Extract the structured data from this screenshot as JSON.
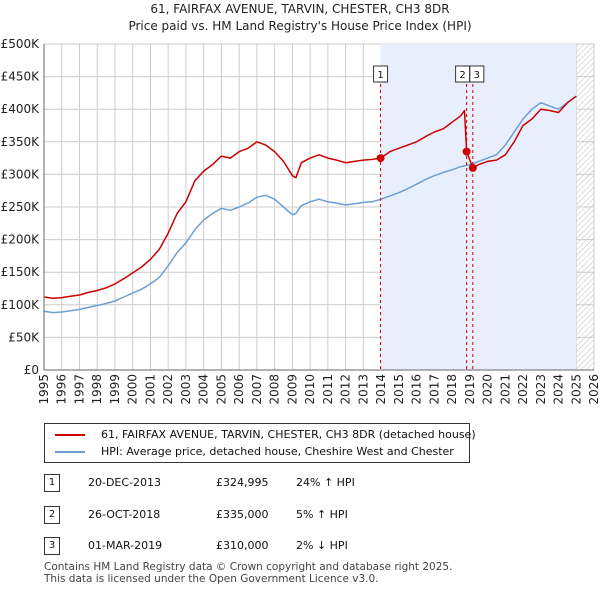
{
  "header": {
    "title_line1": "61, FAIRFAX AVENUE, TARVIN, CHESTER, CH3 8DR",
    "title_line2": "Price paid vs. HM Land Registry's House Price Index (HPI)"
  },
  "legend": {
    "property_label": "61, FAIRFAX AVENUE, TARVIN, CHESTER, CH3 8DR (detached house)",
    "hpi_label": "HPI: Average price, detached house, Cheshire West and Chester"
  },
  "colors": {
    "property": "#cc0000",
    "hpi": "#6b9fd4",
    "shade": "#e8eefb",
    "grid": "#cccccc"
  },
  "transactions": [
    {
      "num": "1",
      "date": "20-DEC-2013",
      "price": "£324,995",
      "hpi": "24% ↑ HPI"
    },
    {
      "num": "2",
      "date": "26-OCT-2018",
      "price": "£335,000",
      "hpi": "5% ↑ HPI"
    },
    {
      "num": "3",
      "date": "01-MAR-2019",
      "price": "£310,000",
      "hpi": "2% ↓ HPI"
    }
  ],
  "footer": {
    "line1": "Contains HM Land Registry data © Crown copyright and database right 2025.",
    "line2": "This data is licensed under the Open Government Licence v3.0."
  },
  "chart_data": {
    "type": "line",
    "title": "61, FAIRFAX AVENUE, TARVIN, CHESTER, CH3 8DR",
    "subtitle": "Price paid vs. HM Land Registry's House Price Index (HPI)",
    "xlabel": "",
    "ylabel": "",
    "xlim": [
      1995,
      2026
    ],
    "ylim": [
      0,
      500000
    ],
    "x_ticks": [
      1995,
      1996,
      1997,
      1998,
      1999,
      2000,
      2001,
      2002,
      2003,
      2004,
      2005,
      2006,
      2007,
      2008,
      2009,
      2010,
      2011,
      2012,
      2013,
      2014,
      2015,
      2016,
      2017,
      2018,
      2019,
      2020,
      2021,
      2022,
      2023,
      2024,
      2025,
      2026
    ],
    "y_ticks": [
      0,
      50000,
      100000,
      150000,
      200000,
      250000,
      300000,
      350000,
      400000,
      450000,
      500000
    ],
    "y_tick_labels": [
      "£0",
      "£50K",
      "£100K",
      "£150K",
      "£200K",
      "£250K",
      "£300K",
      "£350K",
      "£400K",
      "£450K",
      "£500K"
    ],
    "grid": true,
    "shaded_region": {
      "x_start": 2013.97,
      "x_end": 2025.0
    },
    "future_hatch": {
      "x_start": 2025.0,
      "x_end": 2026.0
    },
    "events": [
      {
        "label": "1",
        "x": 2013.97,
        "y": 324995
      },
      {
        "label": "2",
        "x": 2018.82,
        "y": 335000
      },
      {
        "label": "3",
        "x": 2019.17,
        "y": 310000
      }
    ],
    "series": [
      {
        "name": "61, FAIRFAX AVENUE, TARVIN, CHESTER, CH3 8DR (detached house)",
        "color": "#cc0000",
        "x": [
          1995.0,
          1995.5,
          1996.0,
          1996.5,
          1997.0,
          1997.5,
          1998.0,
          1998.5,
          1999.0,
          1999.5,
          2000.0,
          2000.5,
          2001.0,
          2001.5,
          2002.0,
          2002.5,
          2003.0,
          2003.5,
          2004.0,
          2004.5,
          2005.0,
          2005.5,
          2006.0,
          2006.5,
          2007.0,
          2007.5,
          2008.0,
          2008.5,
          2009.0,
          2009.2,
          2009.5,
          2010.0,
          2010.5,
          2011.0,
          2011.5,
          2012.0,
          2012.5,
          2013.0,
          2013.5,
          2013.97,
          2014.5,
          2015.0,
          2015.5,
          2016.0,
          2016.5,
          2017.0,
          2017.5,
          2018.0,
          2018.5,
          2018.7,
          2018.82,
          2019.17,
          2019.5,
          2020.0,
          2020.5,
          2021.0,
          2021.5,
          2022.0,
          2022.5,
          2023.0,
          2023.5,
          2024.0,
          2024.5,
          2025.0
        ],
        "y": [
          112000,
          110000,
          111000,
          113000,
          115000,
          119000,
          122000,
          126000,
          132000,
          140000,
          149000,
          158000,
          170000,
          185000,
          210000,
          240000,
          258000,
          290000,
          305000,
          315000,
          328000,
          325000,
          335000,
          340000,
          350000,
          345000,
          335000,
          320000,
          298000,
          295000,
          318000,
          325000,
          330000,
          325000,
          322000,
          318000,
          320000,
          322000,
          323000,
          324995,
          335000,
          340000,
          345000,
          350000,
          358000,
          365000,
          370000,
          380000,
          390000,
          398000,
          335000,
          310000,
          315000,
          320000,
          322000,
          330000,
          350000,
          375000,
          385000,
          400000,
          398000,
          395000,
          410000,
          420000
        ]
      },
      {
        "name": "HPI: Average price, detached house, Cheshire West and Chester",
        "color": "#6b9fd4",
        "x": [
          1995.0,
          1995.5,
          1996.0,
          1996.5,
          1997.0,
          1997.5,
          1998.0,
          1998.5,
          1999.0,
          1999.5,
          2000.0,
          2000.5,
          2001.0,
          2001.5,
          2002.0,
          2002.5,
          2003.0,
          2003.5,
          2004.0,
          2004.5,
          2005.0,
          2005.5,
          2006.0,
          2006.5,
          2007.0,
          2007.5,
          2008.0,
          2008.5,
          2009.0,
          2009.2,
          2009.5,
          2010.0,
          2010.5,
          2011.0,
          2011.5,
          2012.0,
          2012.5,
          2013.0,
          2013.5,
          2014.0,
          2014.5,
          2015.0,
          2015.5,
          2016.0,
          2016.5,
          2017.0,
          2017.5,
          2018.0,
          2018.5,
          2019.0,
          2019.5,
          2020.0,
          2020.5,
          2021.0,
          2021.5,
          2022.0,
          2022.5,
          2023.0,
          2023.5,
          2024.0,
          2024.5,
          2025.0
        ],
        "y": [
          90000,
          88000,
          89000,
          91000,
          93000,
          96000,
          99000,
          102000,
          106000,
          112000,
          118000,
          124000,
          132000,
          142000,
          160000,
          180000,
          195000,
          215000,
          230000,
          240000,
          248000,
          245000,
          250000,
          256000,
          265000,
          268000,
          262000,
          250000,
          238000,
          240000,
          252000,
          258000,
          262000,
          258000,
          256000,
          253000,
          255000,
          257000,
          258000,
          262000,
          267000,
          272000,
          278000,
          285000,
          292000,
          298000,
          303000,
          307000,
          312000,
          315000,
          320000,
          325000,
          330000,
          345000,
          365000,
          385000,
          400000,
          410000,
          405000,
          400000,
          410000,
          420000
        ]
      }
    ]
  }
}
